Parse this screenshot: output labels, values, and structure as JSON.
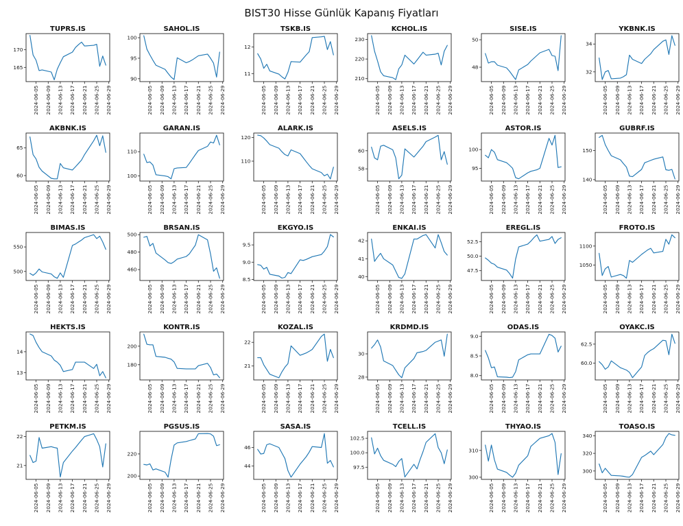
{
  "page": {
    "title": "BIST30 Hisse Günlük Kapanış Fiyatları"
  },
  "chart_data": {
    "type": "line",
    "title": "BIST30 Hisse Günlük Kapanış Fiyatları",
    "layout": {
      "rows": 5,
      "cols": 6,
      "grid": "small-multiples",
      "legend": "none",
      "grid_lines": false
    },
    "line_color": "#1f77b4",
    "x_tick_labels": [
      "2024-06-05",
      "2024-06-09",
      "2024-06-13",
      "2024-06-17",
      "2024-06-21",
      "2024-06-25",
      "2024-06-29"
    ],
    "x_tick_days": [
      5,
      9,
      13,
      17,
      21,
      25,
      29
    ],
    "x_days": [
      3,
      4,
      5,
      6,
      7,
      10,
      11,
      12,
      13,
      14,
      17,
      18,
      19,
      20,
      21,
      24,
      25,
      26,
      27,
      28
    ],
    "x_range": [
      1.7,
      29.3
    ],
    "subplots": [
      {
        "ticker": "TUPRS.IS",
        "ylim": [
          161,
          174.5
        ],
        "ytick_vals": [
          165,
          170
        ],
        "ytick_labels": [
          "165",
          "170"
        ],
        "values": [
          174,
          168.5,
          167,
          164.1,
          164.3,
          163.7,
          161.5,
          164.5,
          166.3,
          168,
          169.3,
          170.6,
          171.4,
          172.1,
          171,
          171.2,
          171.5,
          165.3,
          168.2,
          165.6
        ]
      },
      {
        "ticker": "SAHOL.IS",
        "ylim": [
          89.3,
          101
        ],
        "ytick_vals": [
          90,
          95,
          100
        ],
        "ytick_labels": [
          "90",
          "95",
          "100"
        ],
        "values": [
          100.5,
          97.2,
          95.8,
          94.5,
          93.3,
          92.3,
          91.3,
          90.4,
          89.8,
          95.1,
          93.9,
          94.2,
          94.6,
          95.1,
          95.6,
          96.0,
          95.0,
          93.8,
          90.4,
          96.5
        ]
      },
      {
        "ticker": "TSKB.IS",
        "ylim": [
          10.7,
          12.5
        ],
        "ytick_vals": [
          11,
          12
        ],
        "ytick_labels": [
          "11",
          "12"
        ],
        "values": [
          11.75,
          11.55,
          11.2,
          11.35,
          11.1,
          10.98,
          10.88,
          10.8,
          11.05,
          11.45,
          11.43,
          11.57,
          11.7,
          11.82,
          12.35,
          12.38,
          12.4,
          11.9,
          12.2,
          11.7
        ]
      },
      {
        "ticker": "KCHOL.IS",
        "ylim": [
          208.5,
          233
        ],
        "ytick_vals": [
          210,
          220,
          230
        ],
        "ytick_labels": [
          "210",
          "220",
          "230"
        ],
        "values": [
          232,
          224,
          219,
          213.5,
          211.5,
          210.5,
          209.5,
          215,
          217,
          222,
          217.5,
          219.5,
          221.5,
          223.5,
          222,
          222.5,
          223,
          217,
          224,
          227
        ]
      },
      {
        "ticker": "SISE.IS",
        "ylim": [
          46.95,
          50.45
        ],
        "ytick_vals": [
          48,
          50
        ],
        "ytick_labels": [
          "48",
          "50"
        ],
        "values": [
          49.0,
          48.3,
          48.4,
          48.4,
          48.15,
          47.95,
          47.7,
          47.4,
          47.1,
          47.8,
          48.2,
          48.45,
          48.65,
          48.85,
          49.05,
          49.3,
          48.85,
          48.8,
          47.75,
          50.3
        ]
      },
      {
        "ticker": "YKBNK.IS",
        "ylim": [
          31.3,
          34.75
        ],
        "ytick_vals": [
          32,
          34
        ],
        "ytick_labels": [
          "32",
          "34"
        ],
        "values": [
          33.0,
          31.45,
          32.0,
          32.1,
          31.5,
          31.55,
          31.65,
          31.8,
          33.2,
          32.9,
          32.6,
          32.9,
          33.1,
          33.3,
          33.6,
          34.2,
          34.3,
          33.25,
          34.6,
          33.9
        ]
      },
      {
        "ticker": "AKBNK.IS",
        "ylim": [
          59,
          67.7
        ],
        "ytick_vals": [
          60,
          65
        ],
        "ytick_labels": [
          "60",
          "65"
        ],
        "values": [
          67,
          63.8,
          63.0,
          61.5,
          60.8,
          59.5,
          59.4,
          59.4,
          62.2,
          61.4,
          61.0,
          61.6,
          62.2,
          62.8,
          63.8,
          66.3,
          67.3,
          65.4,
          67.2,
          64.2
        ]
      },
      {
        "ticker": "GARAN.IS",
        "ylim": [
          97.9,
          117.7
        ],
        "ytick_vals": [
          100,
          110
        ],
        "ytick_labels": [
          "100",
          "110"
        ],
        "values": [
          109,
          105.5,
          105.8,
          104.5,
          100.5,
          100.0,
          99.7,
          98.8,
          103,
          103.3,
          103.5,
          105.2,
          107,
          108.8,
          110.5,
          112.2,
          114,
          113.6,
          116.8,
          112.8
        ]
      },
      {
        "ticker": "ALARK.IS",
        "ylim": [
          101.6,
          121.9
        ],
        "ytick_vals": [
          110,
          120
        ],
        "ytick_labels": [
          "110",
          "120"
        ],
        "values": [
          121,
          120.8,
          119.8,
          118.5,
          117,
          115.5,
          114,
          112.8,
          112.2,
          114.8,
          113.2,
          111.5,
          109.8,
          108.2,
          106.8,
          105.2,
          103.8,
          104.5,
          102.5,
          107.5
        ]
      },
      {
        "ticker": "ASELS.IS",
        "ylim": [
          56.65,
          61.95
        ],
        "ytick_vals": [
          58,
          60
        ],
        "ytick_labels": [
          "58",
          "60"
        ],
        "values": [
          60.4,
          59.2,
          59.0,
          60.5,
          60.6,
          60.1,
          59.2,
          56.9,
          57.3,
          60.2,
          59.3,
          59.7,
          60.1,
          60.5,
          61.0,
          61.5,
          61.7,
          59.0,
          59.9,
          58.5
        ]
      },
      {
        "ticker": "ASTOR.IS",
        "ylim": [
          91.6,
          104.4
        ],
        "ytick_vals": [
          95,
          100
        ],
        "ytick_labels": [
          "95",
          "100"
        ],
        "values": [
          98.5,
          97.8,
          100.0,
          99.3,
          97.3,
          96.5,
          95.8,
          95.0,
          92.5,
          92.2,
          93.8,
          94.2,
          94.4,
          94.6,
          95.0,
          103.0,
          101.2,
          103.8,
          95.2,
          95.4
        ]
      },
      {
        "ticker": "GUBRF.IS",
        "ylim": [
          139.5,
          156
        ],
        "ytick_vals": [
          140,
          150
        ],
        "ytick_labels": [
          "140",
          "150"
        ],
        "values": [
          154.5,
          155.2,
          152,
          150,
          148.2,
          146.8,
          145.5,
          144.3,
          141.2,
          141.0,
          143.5,
          145.8,
          146.2,
          146.6,
          147.0,
          147.8,
          143.4,
          143.2,
          143.5,
          140.2
        ]
      },
      {
        "ticker": "BIMAS.IS",
        "ylim": [
          481.5,
          579.5
        ],
        "ytick_vals": [
          500,
          550
        ],
        "ytick_labels": [
          "500",
          "550"
        ],
        "values": [
          496,
          492,
          497,
          505,
          499,
          495,
          489,
          486,
          497,
          488,
          553,
          556,
          560,
          564,
          569,
          575,
          567,
          572,
          560,
          545
        ]
      },
      {
        "ticker": "BRSAN.IS",
        "ylim": [
          447.5,
          502.5
        ],
        "ytick_vals": [
          460,
          480,
          500
        ],
        "ytick_labels": [
          "460",
          "480",
          "500"
        ],
        "values": [
          497,
          498,
          487,
          490,
          479,
          471,
          468,
          467,
          469,
          472,
          475,
          478,
          483,
          488,
          500,
          494,
          478,
          458,
          462,
          450
        ]
      },
      {
        "ticker": "EKGYO.IS",
        "ylim": [
          8.47,
          9.86
        ],
        "ytick_vals": [
          8.5,
          9.0,
          9.5
        ],
        "ytick_labels": [
          "8.5",
          "9.0",
          "9.5"
        ],
        "values": [
          8.93,
          8.91,
          8.8,
          8.85,
          8.65,
          8.6,
          8.54,
          8.56,
          8.7,
          8.67,
          9.07,
          9.05,
          9.08,
          9.12,
          9.16,
          9.22,
          9.32,
          9.45,
          9.8,
          9.73
        ]
      },
      {
        "ticker": "ENKAI.IS",
        "ylim": [
          39.78,
          42.47
        ],
        "ytick_vals": [
          40,
          41,
          42
        ],
        "ytick_labels": [
          "40",
          "41",
          "42"
        ],
        "values": [
          42.1,
          40.85,
          41.1,
          41.3,
          41.0,
          40.65,
          40.3,
          39.95,
          39.9,
          40.15,
          42.1,
          42.1,
          42.2,
          42.3,
          42.35,
          41.6,
          42.35,
          41.9,
          41.4,
          41.2
        ]
      },
      {
        "ticker": "EREGL.IS",
        "ylim": [
          45.8,
          54.1
        ],
        "ytick_vals": [
          47.5,
          50.0,
          52.5
        ],
        "ytick_labels": [
          "47.5",
          "50.0",
          "52.5"
        ],
        "values": [
          49.7,
          49.3,
          48.8,
          48.6,
          48.1,
          47.6,
          47.0,
          46.2,
          49.5,
          51.6,
          52.1,
          52.6,
          53.2,
          53.7,
          52.6,
          52.9,
          53.4,
          52.2,
          52.9,
          53.2
        ]
      },
      {
        "ticker": "FROTO.IS",
        "ylim": [
          1009,
          1136
        ],
        "ytick_vals": [
          1050,
          1100
        ],
        "ytick_labels": [
          "1050",
          "1100"
        ],
        "values": [
          1081,
          1022,
          1040,
          1046,
          1018,
          1025,
          1022,
          1015,
          1062,
          1057,
          1078,
          1084,
          1090,
          1094,
          1082,
          1086,
          1118,
          1105,
          1130,
          1122
        ]
      },
      {
        "ticker": "HEKTS.IS",
        "ylim": [
          12.65,
          14.95
        ],
        "ytick_vals": [
          13,
          14
        ],
        "ytick_labels": [
          "13",
          "14"
        ],
        "values": [
          14.85,
          14.78,
          14.45,
          14.2,
          14.0,
          13.8,
          13.6,
          13.5,
          13.35,
          13.05,
          13.15,
          13.5,
          13.5,
          13.5,
          13.5,
          13.2,
          13.4,
          12.85,
          13.05,
          12.75
        ]
      },
      {
        "ticker": "KONTR.IS",
        "ylim": [
          163.6,
          215.4
        ],
        "ytick_vals": [
          180,
          200
        ],
        "ytick_labels": [
          "180",
          "200"
        ],
        "values": [
          213,
          202,
          201.5,
          201.5,
          189,
          188,
          187,
          186,
          183,
          176,
          175.5,
          175.5,
          175.5,
          175.5,
          179,
          181.5,
          177,
          169,
          170,
          166
        ]
      },
      {
        "ticker": "KOZAL.IS",
        "ylim": [
          20.41,
          22.44
        ],
        "ytick_vals": [
          21,
          22
        ],
        "ytick_labels": [
          "21",
          "22"
        ],
        "values": [
          21.35,
          21.35,
          21.05,
          20.85,
          20.65,
          20.5,
          20.75,
          20.95,
          21.1,
          21.85,
          21.45,
          21.5,
          21.55,
          21.62,
          21.7,
          22.25,
          22.35,
          21.2,
          21.7,
          21.35
        ]
      },
      {
        "ticker": "KRDMD.IS",
        "ylim": [
          27.76,
          31.89
        ],
        "ytick_vals": [
          28,
          30
        ],
        "ytick_labels": [
          "28",
          "30"
        ],
        "values": [
          30.5,
          30.8,
          31.2,
          30.6,
          29.4,
          29.0,
          28.6,
          28.2,
          27.95,
          28.8,
          29.6,
          30.1,
          30.15,
          30.2,
          30.3,
          31.0,
          31.1,
          31.2,
          29.8,
          31.7
        ]
      },
      {
        "ticker": "ODAS.IS",
        "ylim": [
          7.89,
          9.11
        ],
        "ytick_vals": [
          8.0,
          8.5,
          9.0
        ],
        "ytick_labels": [
          "8.0",
          "8.5",
          "9.0"
        ],
        "values": [
          8.64,
          8.45,
          8.2,
          8.22,
          7.97,
          7.96,
          7.95,
          7.96,
          8.1,
          8.4,
          8.53,
          8.55,
          8.55,
          8.55,
          8.55,
          9.05,
          9.02,
          8.95,
          8.6,
          8.75
        ]
      },
      {
        "ticker": "OYAKC.IS",
        "ylim": [
          57.8,
          64.1
        ],
        "ytick_vals": [
          60.0,
          62.5
        ],
        "ytick_labels": [
          "60.0",
          "62.5"
        ],
        "values": [
          60.2,
          59.8,
          59.2,
          59.5,
          60.3,
          59.4,
          59.25,
          59.1,
          58.8,
          58.1,
          59.5,
          61.0,
          61.4,
          61.7,
          61.9,
          63.0,
          62.95,
          61.1,
          63.8,
          62.6
        ]
      },
      {
        "ticker": "PETKM.IS",
        "ylim": [
          20.52,
          22.18
        ],
        "ytick_vals": [
          21,
          22
        ],
        "ytick_labels": [
          "21",
          "22"
        ],
        "values": [
          21.35,
          21.1,
          21.15,
          21.97,
          21.6,
          21.65,
          21.62,
          21.6,
          20.6,
          21.1,
          21.5,
          21.62,
          21.75,
          21.88,
          22.0,
          22.1,
          21.9,
          21.65,
          20.95,
          21.75
        ]
      },
      {
        "ticker": "PGSUS.IS",
        "ylim": [
          197,
          240.4
        ],
        "ytick_vals": [
          200,
          220
        ],
        "ytick_labels": [
          "200",
          "220"
        ],
        "values": [
          210.5,
          210,
          211,
          205.5,
          206.5,
          203.5,
          199,
          215,
          228,
          230,
          231.2,
          232,
          232.8,
          233.5,
          238.3,
          238.4,
          238.1,
          236,
          227.5,
          228.3
        ]
      },
      {
        "ticker": "SASA.IS",
        "ylim": [
          42.56,
          47.74
        ],
        "ytick_vals": [
          44,
          46
        ],
        "ytick_labels": [
          "44",
          "46"
        ],
        "values": [
          45.8,
          45.3,
          45.35,
          46.3,
          46.4,
          46.0,
          45.4,
          44.8,
          43.5,
          42.8,
          44.2,
          44.6,
          45.0,
          45.5,
          46.1,
          46.0,
          47.5,
          44.3,
          44.6,
          43.9
        ]
      },
      {
        "ticker": "TCELL.IS",
        "ylim": [
          95.4,
          103.7
        ],
        "ytick_vals": [
          97.5,
          100.0,
          102.5
        ],
        "ytick_labels": [
          "97.5",
          "100.0",
          "102.5"
        ],
        "values": [
          102.6,
          99.8,
          100.8,
          99.5,
          98.7,
          98.0,
          97.6,
          98.5,
          99.0,
          95.8,
          98.0,
          97.2,
          98.8,
          100.2,
          101.8,
          103.3,
          100.9,
          100.0,
          98.1,
          100.5
        ]
      },
      {
        "ticker": "THYAO.IS",
        "ylim": [
          299.2,
          317.1
        ],
        "ytick_vals": [
          300,
          310
        ],
        "ytick_labels": [
          "300",
          "310"
        ],
        "values": [
          312,
          306,
          312,
          306.5,
          303,
          301.8,
          300.8,
          300,
          301.5,
          304.5,
          308,
          311.5,
          312.5,
          313.5,
          314.5,
          315.5,
          316.3,
          313,
          301,
          308.8
        ]
      },
      {
        "ticker": "TOASO.IS",
        "ylim": [
          290.5,
          345
        ],
        "ytick_vals": [
          300,
          320,
          340
        ],
        "ytick_labels": [
          "300",
          "320",
          "340"
        ],
        "values": [
          308,
          298,
          303,
          299,
          295,
          294.5,
          294,
          293.3,
          293,
          296,
          315.5,
          317.5,
          320,
          322.5,
          318.5,
          330,
          338,
          342.5,
          341,
          340.5
        ]
      }
    ]
  }
}
